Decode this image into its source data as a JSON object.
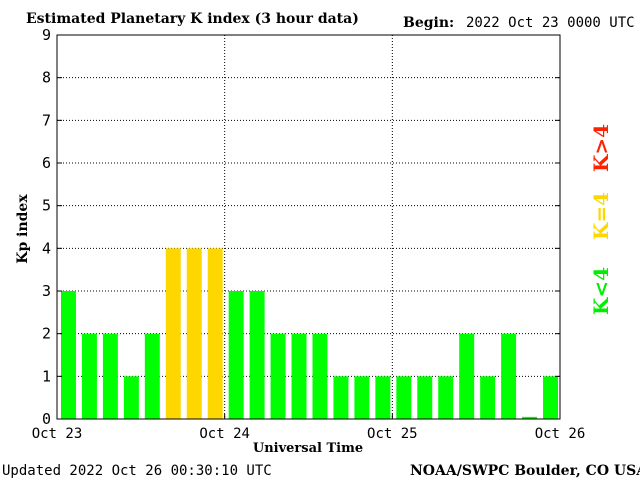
{
  "header": {
    "title": "Estimated Planetary K index (3 hour data)",
    "begin_label": "Begin:",
    "begin_value": "2022 Oct 23 0000 UTC"
  },
  "footer": {
    "updated": "Updated 2022 Oct 26 00:30:10 UTC",
    "credit": "NOAA/SWPC Boulder, CO USA"
  },
  "legend": {
    "low": "K<4",
    "mid": "K=4",
    "high": "K>4"
  },
  "colors": {
    "low": "#00ff00",
    "mid": "#ffd700",
    "high": "#ff2200",
    "grid": "#000000",
    "axis": "#000000"
  },
  "chart_data": {
    "type": "bar",
    "title": "Estimated Planetary K index (3 hour data)",
    "xlabel": "Universal Time",
    "ylabel": "Kp index",
    "ylim": [
      0,
      9
    ],
    "yticks": [
      "0",
      "1",
      "2",
      "3",
      "4",
      "5",
      "6",
      "7",
      "8",
      "9"
    ],
    "xticks": [
      "Oct 23",
      "Oct 24",
      "Oct 25",
      "Oct 26"
    ],
    "grid": true,
    "legend_placement": "right",
    "interval_hours": 3,
    "values": [
      3,
      2,
      2,
      1,
      2,
      4,
      4,
      4,
      3,
      3,
      2,
      2,
      2,
      1,
      1,
      1,
      1,
      1,
      1,
      2,
      1,
      2,
      0.05,
      1
    ]
  }
}
